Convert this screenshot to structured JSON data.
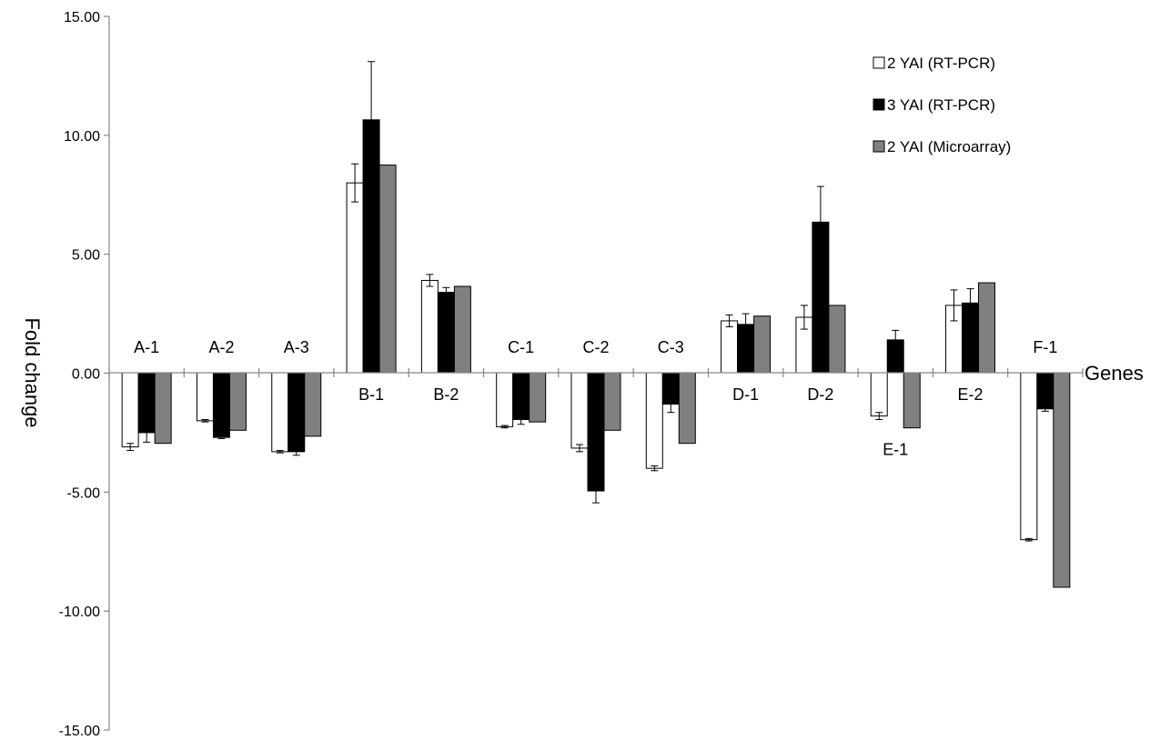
{
  "chart_data": {
    "type": "bar",
    "xlabel": "Genes",
    "ylabel": "Fold change",
    "ylim": [
      -15,
      15
    ],
    "yticks": [
      "15.00",
      "10.00",
      "5.00",
      "0.00",
      "-5.00",
      "-10.00",
      "-15.00"
    ],
    "grid": false,
    "legend_position": "top-right",
    "categories": [
      "A-1",
      "A-2",
      "A-3",
      "B-1",
      "B-2",
      "C-1",
      "C-2",
      "C-3",
      "D-1",
      "D-2",
      "E-1",
      "E-2",
      "F-1"
    ],
    "series": [
      {
        "name": "2 YAI (RT-PCR)",
        "color": "#ffffff",
        "values": [
          -3.1,
          -2.0,
          -3.3,
          8.0,
          3.9,
          -2.25,
          -3.15,
          -4.0,
          2.2,
          2.35,
          -1.8,
          2.85,
          -7.0
        ],
        "errors": [
          0.15,
          0.05,
          0.05,
          0.8,
          0.25,
          0.05,
          0.15,
          0.1,
          0.25,
          0.5,
          0.15,
          0.65,
          0.05
        ]
      },
      {
        "name": "3 YAI (RT-PCR)",
        "color": "#000000",
        "values": [
          -2.5,
          -2.7,
          -3.3,
          10.65,
          3.4,
          -1.95,
          -4.95,
          -1.3,
          2.05,
          6.35,
          1.4,
          2.95,
          -1.5
        ],
        "errors": [
          0.4,
          0.05,
          0.15,
          2.45,
          0.2,
          0.2,
          0.5,
          0.35,
          0.45,
          1.5,
          0.4,
          0.6,
          0.1
        ]
      },
      {
        "name": "2 YAI (Microarray)",
        "color": "#808080",
        "values": [
          -2.95,
          -2.4,
          -2.65,
          8.75,
          3.65,
          -2.05,
          -2.4,
          -2.95,
          2.4,
          2.85,
          -2.3,
          3.8,
          -9.0
        ],
        "errors": null
      }
    ]
  }
}
